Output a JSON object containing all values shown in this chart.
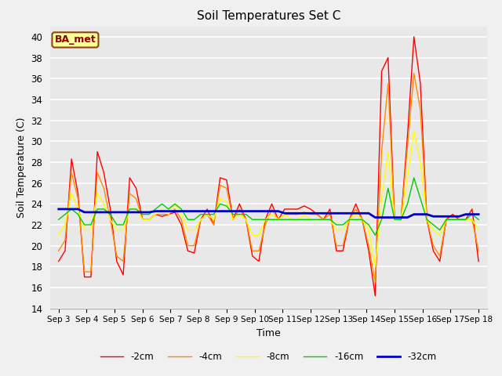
{
  "title": "Soil Temperatures Set C",
  "xlabel": "Time",
  "ylabel": "Soil Temperature (C)",
  "ylim": [
    14,
    41
  ],
  "yticks": [
    14,
    16,
    18,
    20,
    22,
    24,
    26,
    28,
    30,
    32,
    34,
    36,
    38,
    40
  ],
  "fig_bg_color": "#f0f0f0",
  "plot_bg_color": "#e8e8e8",
  "annotation_text": "BA_met",
  "annotation_color": "#8B0000",
  "annotation_bg": "#ffff99",
  "annotation_border": "#8B4513",
  "series": {
    "-2cm": {
      "color": "#FF0000",
      "linewidth": 1.0,
      "values": [
        18.5,
        19.5,
        28.3,
        25.0,
        17.0,
        17.0,
        29.0,
        27.0,
        23.5,
        18.5,
        17.2,
        26.5,
        25.5,
        22.5,
        22.5,
        23.0,
        22.8,
        23.0,
        23.2,
        22.0,
        19.5,
        19.3,
        22.5,
        23.5,
        22.0,
        26.5,
        26.3,
        22.5,
        24.0,
        22.5,
        19.0,
        18.5,
        22.5,
        24.0,
        22.5,
        23.5,
        23.5,
        23.5,
        23.8,
        23.5,
        23.0,
        22.5,
        23.5,
        19.5,
        19.5,
        22.5,
        24.0,
        22.5,
        19.5,
        15.2,
        36.7,
        38.0,
        22.5,
        22.5,
        30.5,
        40.0,
        35.5,
        22.5,
        19.5,
        18.5,
        22.5,
        23.0,
        22.5,
        22.5,
        23.5,
        18.5
      ]
    },
    "-4cm": {
      "color": "#FF8C00",
      "linewidth": 1.0,
      "values": [
        19.5,
        20.5,
        27.0,
        24.5,
        17.5,
        17.5,
        27.0,
        25.5,
        22.5,
        19.0,
        18.5,
        25.0,
        24.5,
        22.5,
        22.5,
        23.0,
        23.0,
        23.0,
        23.5,
        22.5,
        20.0,
        20.0,
        22.5,
        23.0,
        22.0,
        25.8,
        25.5,
        22.5,
        23.5,
        22.5,
        19.5,
        19.5,
        22.0,
        23.5,
        22.5,
        23.0,
        23.0,
        23.0,
        23.2,
        23.0,
        23.0,
        22.5,
        23.0,
        20.0,
        20.0,
        22.5,
        23.5,
        22.5,
        20.0,
        16.5,
        29.0,
        35.5,
        22.5,
        22.5,
        29.5,
        36.5,
        33.0,
        22.5,
        20.0,
        19.0,
        22.5,
        22.5,
        22.5,
        22.5,
        22.5,
        19.5
      ]
    },
    "-8cm": {
      "color": "#FFFF00",
      "linewidth": 1.0,
      "values": [
        21.0,
        22.0,
        25.0,
        23.5,
        21.5,
        21.5,
        25.0,
        24.0,
        22.5,
        21.5,
        21.5,
        23.5,
        23.5,
        22.5,
        22.5,
        23.0,
        23.5,
        23.0,
        24.0,
        23.0,
        21.5,
        21.5,
        22.5,
        23.0,
        22.5,
        24.5,
        24.2,
        22.5,
        23.0,
        22.5,
        21.0,
        21.0,
        22.5,
        23.0,
        22.5,
        23.0,
        22.5,
        22.5,
        23.0,
        22.5,
        22.5,
        22.5,
        22.5,
        21.5,
        21.5,
        22.5,
        23.0,
        22.5,
        21.5,
        18.0,
        24.5,
        29.0,
        22.5,
        22.5,
        26.5,
        31.0,
        28.0,
        22.5,
        21.5,
        21.0,
        22.5,
        22.5,
        22.5,
        22.5,
        22.5,
        21.5
      ]
    },
    "-16cm": {
      "color": "#00CC00",
      "linewidth": 1.0,
      "values": [
        22.5,
        23.0,
        23.5,
        23.0,
        22.0,
        22.0,
        23.5,
        23.5,
        23.0,
        22.0,
        22.0,
        23.5,
        23.5,
        23.0,
        23.0,
        23.5,
        24.0,
        23.5,
        24.0,
        23.5,
        22.5,
        22.5,
        23.0,
        23.0,
        23.0,
        24.0,
        23.8,
        23.0,
        23.0,
        23.0,
        22.5,
        22.5,
        22.5,
        22.5,
        22.5,
        22.5,
        22.5,
        22.5,
        22.5,
        22.5,
        22.5,
        22.5,
        22.5,
        22.0,
        22.0,
        22.5,
        22.5,
        22.5,
        22.0,
        21.0,
        22.5,
        25.5,
        22.5,
        22.5,
        24.0,
        26.5,
        24.5,
        22.5,
        22.0,
        21.5,
        22.5,
        22.5,
        22.5,
        22.5,
        23.0,
        22.5
      ]
    },
    "-32cm": {
      "color": "#0000CC",
      "linewidth": 2.0,
      "values": [
        23.5,
        23.5,
        23.5,
        23.5,
        23.2,
        23.2,
        23.2,
        23.2,
        23.2,
        23.2,
        23.2,
        23.2,
        23.2,
        23.2,
        23.2,
        23.3,
        23.3,
        23.3,
        23.3,
        23.3,
        23.3,
        23.3,
        23.3,
        23.3,
        23.3,
        23.3,
        23.3,
        23.3,
        23.3,
        23.3,
        23.3,
        23.3,
        23.3,
        23.3,
        23.3,
        23.1,
        23.1,
        23.1,
        23.1,
        23.1,
        23.1,
        23.1,
        23.1,
        23.1,
        23.1,
        23.1,
        23.1,
        23.1,
        23.1,
        22.7,
        22.7,
        22.7,
        22.7,
        22.7,
        22.7,
        23.0,
        23.0,
        23.0,
        22.8,
        22.8,
        22.8,
        22.8,
        22.8,
        23.0,
        23.0,
        23.0
      ]
    }
  },
  "xtick_labels": [
    "Sep 3",
    "Sep 4",
    "Sep 5",
    "Sep 6",
    "Sep 7",
    "Sep 8",
    "Sep 9",
    "Sep 10",
    "Sep 11",
    "Sep 12",
    "Sep 13",
    "Sep 14",
    "Sep 15",
    "Sep 16",
    "Sep 17",
    "Sep 18"
  ],
  "n_points": 66,
  "legend_labels": [
    "-2cm",
    "-4cm",
    "-8cm",
    "-16cm",
    "-32cm"
  ],
  "legend_colors": [
    "#FF0000",
    "#FF8C00",
    "#FFFF00",
    "#00CC00",
    "#0000CC"
  ]
}
